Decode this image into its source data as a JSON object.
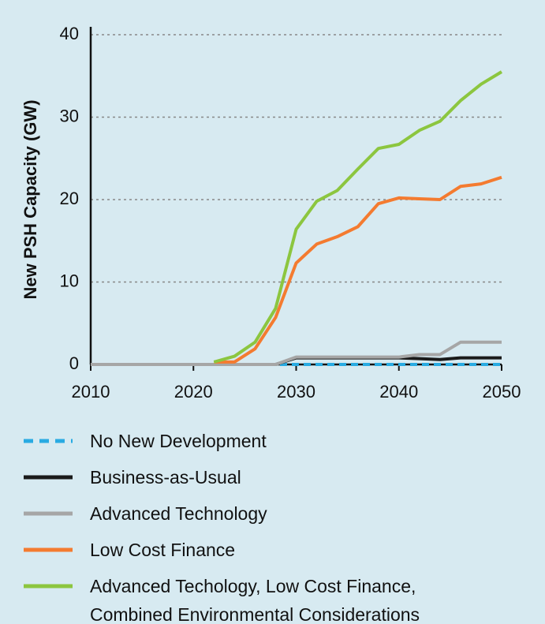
{
  "chart_data": {
    "type": "line",
    "y_label": "New PSH Capacity (GW)",
    "x": [
      2010,
      2012,
      2014,
      2016,
      2018,
      2020,
      2022,
      2024,
      2026,
      2028,
      2030,
      2032,
      2034,
      2036,
      2038,
      2040,
      2042,
      2044,
      2046,
      2048,
      2050
    ],
    "xlim": [
      2010,
      2050
    ],
    "xticks": [
      2010,
      2020,
      2030,
      2040,
      2050
    ],
    "ylim": [
      0,
      40
    ],
    "yticks": [
      0,
      10,
      20,
      30,
      40
    ],
    "grid": true,
    "series": [
      {
        "name": "No New Development",
        "color": "#29abe2",
        "dashed": true,
        "values": [
          0,
          0,
          0,
          0,
          0,
          0,
          0,
          0,
          0,
          0,
          0,
          0,
          0,
          0,
          0,
          0,
          0,
          0,
          0,
          0,
          0
        ]
      },
      {
        "name": "Business-as-Usual",
        "color": "#1a1a1a",
        "values": [
          0,
          0,
          0,
          0,
          0,
          0,
          0,
          0,
          0,
          0,
          0.8,
          0.8,
          0.8,
          0.8,
          0.8,
          0.8,
          0.7,
          0.6,
          0.8,
          0.8,
          0.8
        ]
      },
      {
        "name": "Advanced Technology",
        "color": "#a6a6a6",
        "values": [
          0,
          0,
          0,
          0,
          0,
          0,
          0,
          0,
          0,
          0,
          0.9,
          0.9,
          0.9,
          0.9,
          0.9,
          0.9,
          1.2,
          1.2,
          2.7,
          2.7,
          2.7
        ]
      },
      {
        "name": "Low Cost Finance",
        "color": "#f47b30",
        "values": [
          null,
          null,
          null,
          null,
          null,
          null,
          0.3,
          0.3,
          1.9,
          5.7,
          12.3,
          14.6,
          15.5,
          16.7,
          19.5,
          20.2,
          20.1,
          20.0,
          21.6,
          21.9,
          22.7
        ]
      },
      {
        "name": "Advanced Techology, Low Cost Finance, Combined Environmental Considerations",
        "color": "#8cc63f",
        "values": [
          null,
          null,
          null,
          null,
          null,
          null,
          0.3,
          1.0,
          2.7,
          6.8,
          16.4,
          19.8,
          21.1,
          23.7,
          26.2,
          26.7,
          28.4,
          29.5,
          32.0,
          34.0,
          35.5
        ]
      }
    ]
  }
}
